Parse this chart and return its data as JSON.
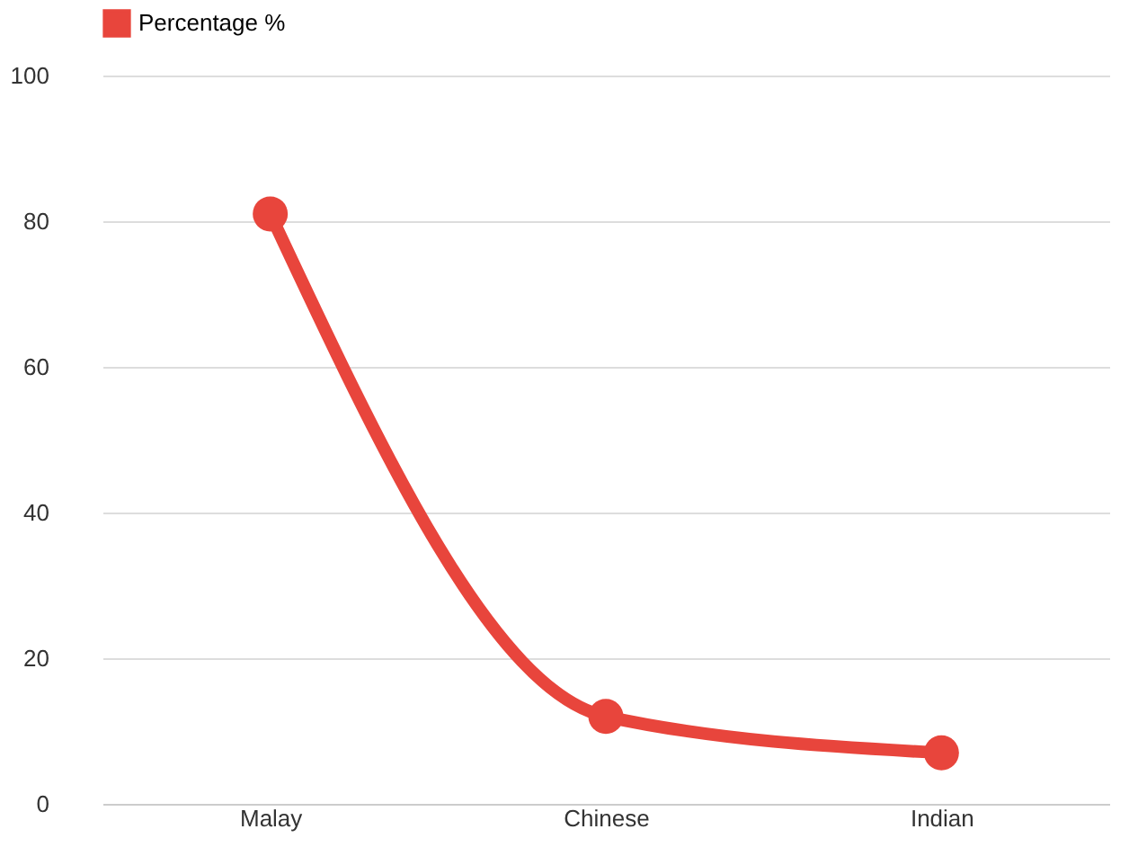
{
  "chart_data": {
    "type": "line",
    "categories": [
      "Malay",
      "Chinese",
      "Indian"
    ],
    "series": [
      {
        "name": "Percentage %",
        "color": "#e8453c",
        "values": [
          81,
          12,
          7
        ]
      }
    ],
    "ylim": [
      0,
      100
    ],
    "yticks": [
      0,
      20,
      40,
      60,
      80,
      100
    ],
    "grid": "y",
    "legend": "top",
    "marker": "circle",
    "line_style": "solid"
  }
}
